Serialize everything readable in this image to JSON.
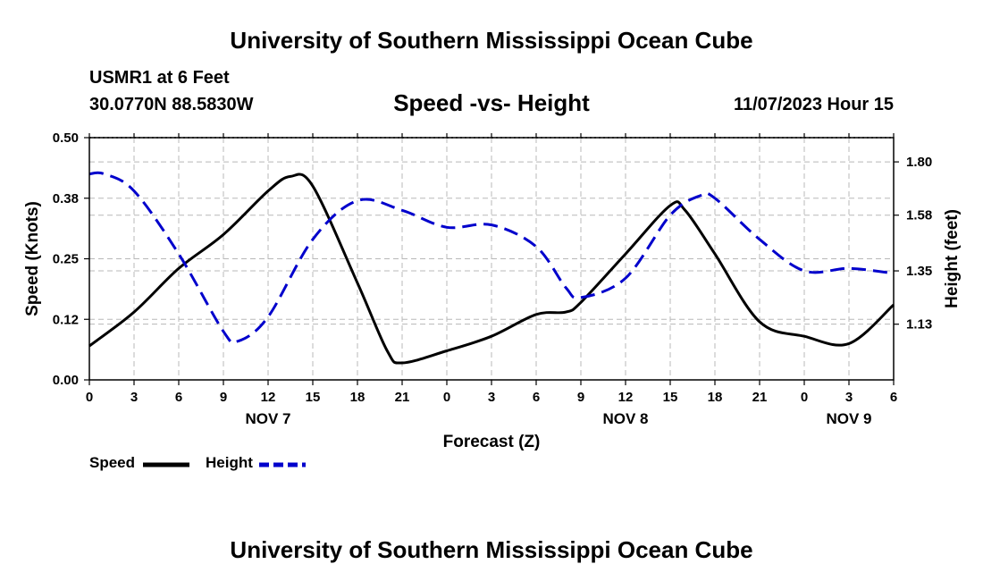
{
  "header": {
    "main_title": "University of Southern Mississippi Ocean Cube",
    "station": "USMR1 at 6 Feet",
    "coords": "30.0770N  88.5830W",
    "chart_title": "Speed -vs- Height",
    "date_hour": "11/07/2023 Hour 15"
  },
  "footer": {
    "title": "University of Southern Mississippi Ocean Cube"
  },
  "legend": {
    "speed": "Speed",
    "height": "Height"
  },
  "chart_data": {
    "type": "line",
    "title": "Speed -vs- Height",
    "xlabel": "Forecast (Z)",
    "ylabel": "Speed (Knots)",
    "y2label": "Height (feet)",
    "grid": true,
    "x_hours": [
      0,
      3,
      6,
      9,
      12,
      15,
      18,
      21,
      24,
      27,
      30,
      33,
      36,
      39,
      42,
      45,
      48,
      51,
      54
    ],
    "x_tick_labels": [
      "0",
      "3",
      "6",
      "9",
      "12",
      "15",
      "18",
      "21",
      "0",
      "3",
      "6",
      "9",
      "12",
      "15",
      "18",
      "21",
      "0",
      "3",
      "6"
    ],
    "date_labels": [
      {
        "hour": 12,
        "label": "NOV 7"
      },
      {
        "hour": 36,
        "label": "NOV 8"
      },
      {
        "hour": 51,
        "label": "NOV 9"
      }
    ],
    "ylim": [
      0,
      0.5
    ],
    "y_ticks": [
      "0.00",
      "0.12",
      "0.25",
      "0.38",
      "0.50"
    ],
    "y2lim": [
      0.9,
      1.9
    ],
    "y2_ticks": [
      "1.13",
      "1.35",
      "1.58",
      "1.80"
    ],
    "series": [
      {
        "name": "Speed",
        "axis": "left",
        "color": "#000000",
        "style": "solid",
        "hours": [
          0,
          3,
          6,
          9,
          12,
          13.5,
          15,
          18,
          20,
          21,
          24,
          27,
          30,
          32,
          33,
          36,
          39,
          40,
          42,
          45,
          48,
          51,
          54
        ],
        "values": [
          0.07,
          0.14,
          0.23,
          0.3,
          0.39,
          0.42,
          0.4,
          0.2,
          0.06,
          0.035,
          0.06,
          0.09,
          0.135,
          0.14,
          0.16,
          0.26,
          0.36,
          0.35,
          0.26,
          0.12,
          0.09,
          0.075,
          0.155
        ]
      },
      {
        "name": "Height",
        "axis": "right",
        "color": "#0000cc",
        "style": "dashed",
        "hours": [
          0,
          1,
          3,
          6,
          9,
          10,
          12,
          15,
          18,
          21,
          24,
          27,
          30,
          32,
          33,
          36,
          39,
          41,
          42,
          45,
          48,
          51,
          54
        ],
        "values": [
          1.75,
          1.75,
          1.68,
          1.42,
          1.1,
          1.06,
          1.16,
          1.48,
          1.64,
          1.6,
          1.53,
          1.54,
          1.45,
          1.28,
          1.24,
          1.32,
          1.58,
          1.66,
          1.65,
          1.48,
          1.35,
          1.36,
          1.34
        ]
      }
    ]
  }
}
